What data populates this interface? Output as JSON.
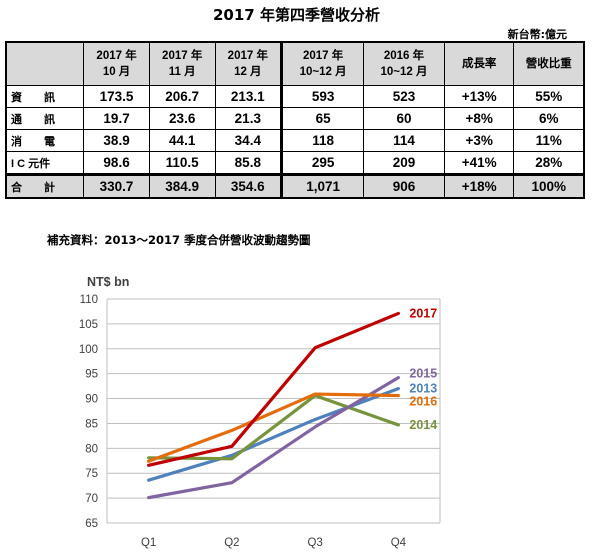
{
  "title": "2017 年第四季營收分析",
  "unit_note": "新台幣:億元",
  "table": {
    "headers": [
      "",
      "2017 年|10 月",
      "2017 年|11 月",
      "2017 年|12 月",
      "2017 年|10~12 月",
      "2016 年|10~12 月",
      "成長率",
      "營收比重"
    ],
    "rows": [
      {
        "label": "資　　訊",
        "values": [
          "173.5",
          "206.7",
          "213.1",
          "593",
          "523",
          "+13%",
          "55%"
        ]
      },
      {
        "label": "通　　訊",
        "values": [
          "19.7",
          "23.6",
          "21.3",
          "65",
          "60",
          "+8%",
          "6%"
        ]
      },
      {
        "label": "消　　電",
        "values": [
          "38.9",
          "44.1",
          "34.4",
          "118",
          "114",
          "+3%",
          "11%"
        ]
      },
      {
        "label": "I C 元件",
        "values": [
          "98.6",
          "110.5",
          "85.8",
          "295",
          "209",
          "+41%",
          "28%"
        ]
      }
    ],
    "total": {
      "label": "合　　計",
      "values": [
        "330.7",
        "384.9",
        "354.6",
        "1,071",
        "906",
        "+18%",
        "100%"
      ]
    }
  },
  "supplement_title": "補充資料：2013～2017 季度合併營收波動趨勢圖",
  "chart_data": {
    "type": "line",
    "ylabel": "NT$ bn",
    "categories": [
      "Q1",
      "Q2",
      "Q3",
      "Q4"
    ],
    "ylim": [
      65,
      110
    ],
    "yticks": [
      65,
      70,
      75,
      80,
      85,
      90,
      95,
      100,
      105,
      110
    ],
    "grid": true,
    "legend": "labels at line ends",
    "series": [
      {
        "name": "2013",
        "color": "#4f81bd",
        "values": [
          73.6,
          78.6,
          85.8,
          92.0
        ]
      },
      {
        "name": "2014",
        "color": "#77933c",
        "values": [
          78.1,
          77.9,
          90.6,
          84.7
        ]
      },
      {
        "name": "2015",
        "color": "#8064a2",
        "values": [
          70.1,
          73.1,
          84.3,
          94.2
        ]
      },
      {
        "name": "2016",
        "color": "#e46c0a",
        "values": [
          77.4,
          83.6,
          90.9,
          90.6
        ]
      },
      {
        "name": "2017",
        "color": "#c00000",
        "values": [
          76.6,
          80.4,
          100.2,
          107.1
        ]
      }
    ]
  }
}
